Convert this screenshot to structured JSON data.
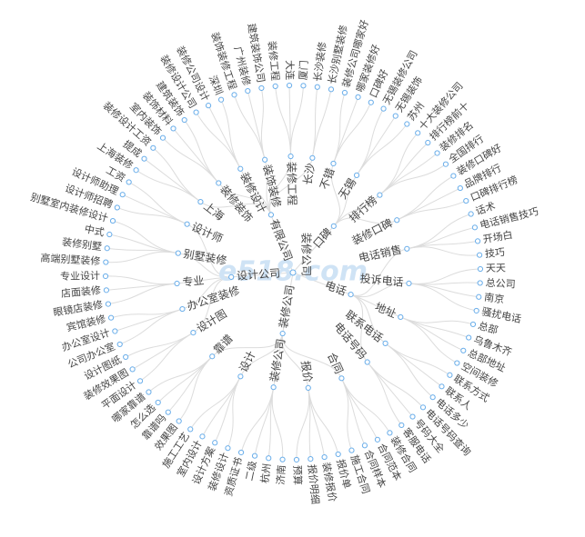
{
  "watermark": "e518.com",
  "tree": {
    "root": "装修公司",
    "branches": [
      {
        "label": "口碑",
        "groups": [
          {
            "label": "不错",
            "leaves": [
              "装修公司哪家好",
              "哪家装修好",
              "口碑好"
            ]
          },
          {
            "label": "无锡",
            "leaves": [
              "无锡装修公司",
              "无锡装饰",
              "苏州"
            ]
          },
          {
            "label": "排行榜",
            "leaves": [
              "十大装修公司",
              "排行榜前十",
              "装修排名",
              "全国排行"
            ]
          },
          {
            "label": "装修口碑",
            "leaves": [
              "装修口碑好",
              "品牌排行",
              "口碑排行榜"
            ]
          }
        ]
      },
      {
        "label": "电话",
        "groups": [
          {
            "label": "电话销售",
            "leaves": [
              "话术",
              "电话销售技巧",
              "开场白",
              "技巧"
            ]
          },
          {
            "label": "投诉电话",
            "leaves": [
              "天天",
              "总公司",
              "南京",
              "骚扰电话"
            ]
          },
          {
            "label": "地址",
            "leaves": [
              "总部",
              "乌鲁木齐",
              "总部地址",
              "空间装修"
            ]
          },
          {
            "label": "联系电话",
            "leaves": [
              "联系方式",
              "联系人",
              "电话多少"
            ]
          },
          {
            "label": "电话号码",
            "leaves": [
              "电话号码查询",
              "号码大全",
              "客服电话"
            ]
          }
        ]
      },
      {
        "label": "装修公司",
        "groups": [
          {
            "label": "合同",
            "leaves": [
              "装修合同",
              "合同范本",
              "合同样本",
              "施工合同"
            ]
          },
          {
            "label": "报价",
            "leaves": [
              "报价单",
              "装修报价",
              "报价明细",
              "预算"
            ]
          },
          {
            "label": "装修公司",
            "leaves": [
              "济南",
              "杭州",
              "二级",
              "资质证书"
            ]
          },
          {
            "label": "设计",
            "leaves": [
              "装修设计",
              "设计方案",
              "室内设计",
              "施工工艺"
            ]
          },
          {
            "label": "靠谱",
            "leaves": [
              "效果图",
              "靠谱吗",
              "怎么选",
              "哪家靠谱"
            ]
          }
        ]
      },
      {
        "label": "设计公司",
        "groups": [
          {
            "label": "设计图",
            "leaves": [
              "平面设计",
              "装修效果图",
              "设计图纸"
            ]
          },
          {
            "label": "办公室装修",
            "leaves": [
              "公司办公室",
              "办公室设计",
              "宾馆装修"
            ]
          },
          {
            "label": "专业",
            "leaves": [
              "眼镜店装修",
              "店面装修",
              "专业设计"
            ]
          },
          {
            "label": "别墅装修",
            "leaves": [
              "高端别墅装修",
              "装修别墅",
              "中式",
              "别墅室内装修设计"
            ]
          },
          {
            "label": "设计师",
            "leaves": [
              "设计师招聘",
              "设计师助理",
              "工资"
            ]
          }
        ]
      },
      {
        "label": "有限公司",
        "groups": [
          {
            "label": "上海",
            "leaves": [
              "上海装修",
              "提成",
              "装修设计工资"
            ]
          },
          {
            "label": "装修装饰",
            "leaves": [
              "室内装饰",
              "装饰材料",
              "建筑装饰"
            ]
          },
          {
            "label": "装修设计",
            "leaves": [
              "装修设计公司",
              "装修公司设计",
              "深圳"
            ]
          },
          {
            "label": "装饰装修",
            "leaves": [
              "装饰装修工程",
              "广州装修",
              "建筑装饰公司"
            ]
          },
          {
            "label": "装修工程",
            "leaves": [
              "装修工程",
              "大连",
              "厦门"
            ]
          },
          {
            "label": "长沙",
            "leaves": [
              "长沙装修",
              "长沙别墅装修"
            ]
          }
        ]
      }
    ]
  }
}
